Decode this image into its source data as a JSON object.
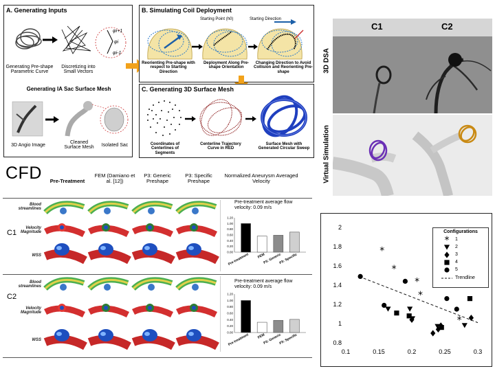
{
  "panelA": {
    "title": "A. Generating Inputs",
    "label_preshape": "Generating Pre-shape Parametric Curve",
    "label_discretize": "Discretizing into Small Vectors",
    "mesh_title": "Generating IA Sac Surface Mesh",
    "label_angio": "3D Angio Image",
    "label_cleaned": "Cleaned Surface Mesh",
    "label_isolated": "Isolated Sac",
    "phi_top": "φi+1",
    "phi_mid": "φi",
    "phi_bot": "φi-1"
  },
  "panelB": {
    "title": "B. Simulating Coil Deployment",
    "starting_point": "Starting Point (h0)",
    "starting_direction": "Starting Direction",
    "label1": "Reorienting Pre-shape with respect to Starting Direction",
    "label2": "Deployment Along Pre-shape Orientation",
    "label3": "Changing Direction to Avoid Collision and Reorienting Pre-shape"
  },
  "panelC": {
    "title": "C. Generating 3D Surface Mesh",
    "label1": "Coordinates of Centerlines of Segments",
    "label2": "Centerline Trajectory Curve in RED",
    "label3": "Surface Mesh with Generated Circular Sweep"
  },
  "dsa": {
    "c1": "C1",
    "c2": "C2",
    "side_top": "3D DSA",
    "side_bottom": "Virtual Simulation"
  },
  "cfd": {
    "title": "CFD",
    "headers": [
      "Pre-Treatment",
      "FEM (Damiano et al. [12])",
      "P3: Generic Preshape",
      "P3: Specific Preshape"
    ],
    "bar_header": "Normalized Aneurysm Averaged Velocity",
    "rows": [
      {
        "case": "C1",
        "labels": [
          "Blood streamlines",
          "Velocity Magnitude",
          "WSS"
        ],
        "bar_note": "Pre-treatment average flow velocity: 0.09 m/s"
      },
      {
        "case": "C2",
        "labels": [
          "Blood streamlines",
          "Velocity Magnitude",
          "WSS"
        ],
        "bar_note": "Pre-treatment average flow velocity: 0.09 m/s"
      }
    ],
    "bar_yticks": [
      "1.20",
      "1.00",
      "0.80",
      "0.60",
      "0.40",
      "0.20",
      "0.00"
    ],
    "bar_categories": [
      "Pre-treatment",
      "FEM",
      "P3: Generic",
      "P3: Specific"
    ],
    "bar_colors": [
      "#000000",
      "#ffffff",
      "#8c8c8c",
      "#d0d0d0"
    ]
  },
  "chart_data": {
    "type": "scatter",
    "xlim": [
      0.1,
      0.3
    ],
    "ylim": [
      0.8,
      2.0
    ],
    "xticks": [
      "0.1",
      "0.15",
      "0.2",
      "0.25",
      "0.3"
    ],
    "yticks": [
      "2",
      "1.8",
      "1.6",
      "1.4",
      "1.2",
      "1",
      "0.8"
    ],
    "legend_title": "Configurations",
    "legend_position": "top-right",
    "series": [
      {
        "name": "1",
        "marker": "star",
        "x": [
          0.155,
          0.173,
          0.208,
          0.213,
          0.272
        ],
        "y": [
          1.76,
          1.57,
          1.44,
          1.3,
          1.04
        ]
      },
      {
        "name": "2",
        "marker": "triangle-down",
        "x": [
          0.164,
          0.197,
          0.201,
          0.239,
          0.28
        ],
        "y": [
          1.15,
          1.15,
          1.05,
          0.97,
          0.98
        ]
      },
      {
        "name": "3",
        "marker": "diamond",
        "x": [
          0.2,
          0.232,
          0.24,
          0.244,
          0.29
        ],
        "y": [
          1.04,
          0.9,
          0.94,
          0.98,
          1.06
        ]
      },
      {
        "name": "4",
        "marker": "square",
        "x": [
          0.177,
          0.196,
          0.245,
          0.288
        ],
        "y": [
          1.11,
          1.08,
          0.96,
          1.26
        ]
      },
      {
        "name": "5",
        "marker": "circle",
        "x": [
          0.122,
          0.158,
          0.19,
          0.253,
          0.268
        ],
        "y": [
          1.49,
          1.19,
          1.44,
          1.26,
          1.15
        ]
      }
    ],
    "trendline": {
      "name": "Trendline",
      "x": [
        0.12,
        0.3
      ],
      "y": [
        1.49,
        1.01
      ]
    },
    "cfd_bars": [
      {
        "case": "C1",
        "values": [
          1.0,
          0.56,
          0.59,
          0.7
        ]
      },
      {
        "case": "C2",
        "values": [
          1.0,
          0.32,
          0.38,
          0.41
        ]
      }
    ]
  }
}
